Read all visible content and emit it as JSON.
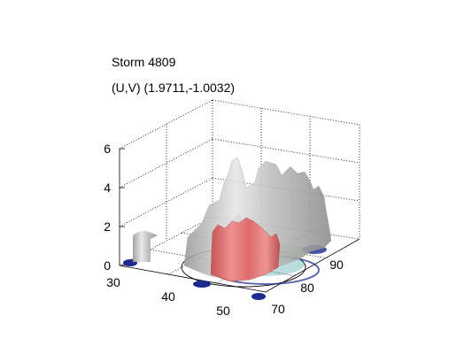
{
  "title": "Storm 4809",
  "subtitle": "(U,V) (1.9711,-1.0032)",
  "chart_data": {
    "type": "surface3d",
    "zticks": [
      "0",
      "2",
      "4",
      "6"
    ],
    "xticks": [
      "30",
      "40",
      "50"
    ],
    "yticks": [
      "70",
      "80",
      "90"
    ],
    "zlim": [
      0,
      6
    ],
    "xlim": [
      30,
      55
    ],
    "ylim": [
      68,
      93
    ],
    "grid": true,
    "colors": {
      "isosurface_outer": "#c8c8c8",
      "isosurface_inner": "#e05a5a",
      "base_low": "#1c2a8c",
      "base_mid": "#3aa0a0",
      "base_high": "#7fd06a"
    }
  }
}
